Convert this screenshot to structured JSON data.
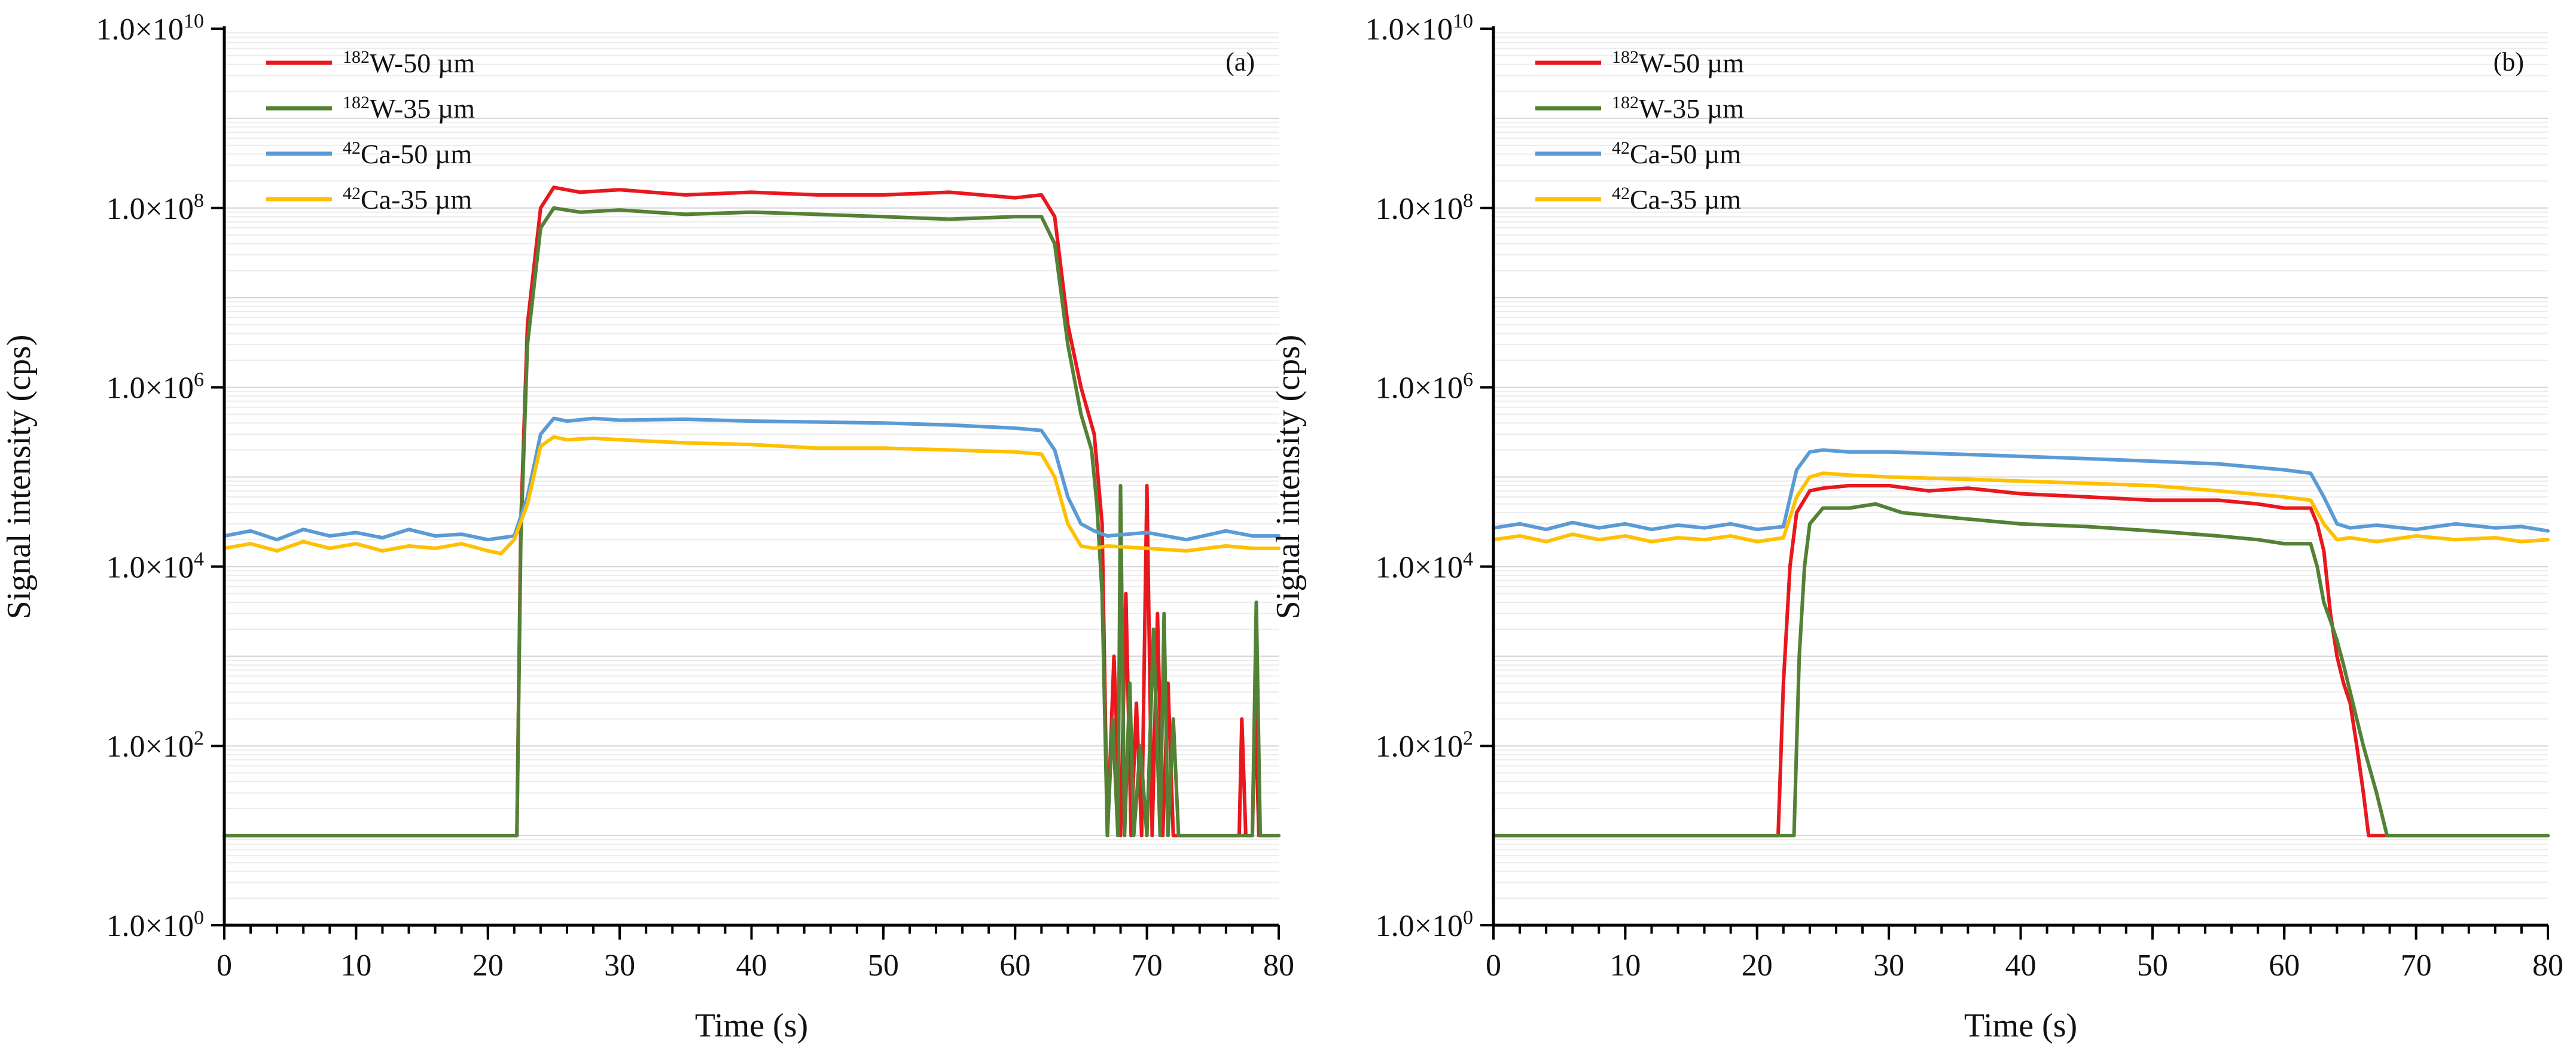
{
  "chart_data": [
    {
      "type": "line",
      "panel_label": "(a)",
      "xlabel": "Time (s)",
      "ylabel": "Signal intensity (cps)",
      "xlim": [
        0,
        80
      ],
      "ylim": [
        1,
        10000000000
      ],
      "yscale": "log",
      "grid": "horizontal minor",
      "legend_position": "top-left",
      "x_ticks": [
        {
          "value": 0,
          "label": "0"
        },
        {
          "value": 10,
          "label": "10"
        },
        {
          "value": 20,
          "label": "20"
        },
        {
          "value": 30,
          "label": "30"
        },
        {
          "value": 40,
          "label": "40"
        },
        {
          "value": 50,
          "label": "50"
        },
        {
          "value": 60,
          "label": "60"
        },
        {
          "value": 70,
          "label": "70"
        },
        {
          "value": 80,
          "label": "80"
        }
      ],
      "y_ticks": [
        {
          "value": 1,
          "base": "1.0×10",
          "exp": "0"
        },
        {
          "value": 100,
          "base": "1.0×10",
          "exp": "2"
        },
        {
          "value": 10000,
          "base": "1.0×10",
          "exp": "4"
        },
        {
          "value": 1000000,
          "base": "1.0×10",
          "exp": "6"
        },
        {
          "value": 100000000,
          "base": "1.0×10",
          "exp": "8"
        },
        {
          "value": 10000000000,
          "base": "1.0×10",
          "exp": "10"
        }
      ],
      "series": [
        {
          "name": "182W-50 µm",
          "isotope_mass": "182",
          "label_rest": "W-50 µm",
          "color": "#e8181e",
          "x": [
            0,
            22.2,
            22.5,
            23.0,
            24.0,
            25.0,
            27.0,
            30.0,
            35.0,
            40.0,
            45.0,
            50.0,
            55.0,
            60.0,
            62.0,
            63.0,
            64.0,
            65.0,
            66.0,
            66.6,
            67.0,
            67.5,
            68.0,
            68.4,
            68.8,
            69.2,
            69.6,
            70.0,
            70.4,
            70.8,
            71.2,
            71.6,
            72.0,
            72.4,
            73.0,
            74.0,
            76.0,
            77.0,
            77.2,
            77.5,
            77.8,
            78.0,
            78.2,
            78.5,
            79.0,
            80.0
          ],
          "values": [
            10,
            10,
            30000,
            5000000,
            100000000,
            170000000,
            150000000,
            160000000,
            140000000,
            150000000,
            140000000,
            140000000,
            150000000,
            130000000,
            140000000,
            80000000,
            5000000,
            1000000,
            300000,
            30000,
            10,
            1000,
            10,
            5000,
            10,
            300,
            10,
            80000,
            10,
            3000,
            10,
            500,
            10,
            10,
            10,
            10,
            10,
            10,
            200,
            10,
            10,
            10,
            300,
            10,
            10,
            10
          ]
        },
        {
          "name": "182W-35 µm",
          "isotope_mass": "182",
          "label_rest": "W-35 µm",
          "color": "#538135",
          "x": [
            0,
            22.2,
            22.5,
            23.0,
            24.0,
            25.0,
            27.0,
            30.0,
            35.0,
            40.0,
            45.0,
            50.0,
            55.0,
            60.0,
            62.0,
            63.0,
            64.0,
            65.0,
            65.8,
            66.2,
            66.6,
            67.0,
            67.4,
            67.8,
            68.0,
            68.3,
            68.7,
            69.0,
            69.5,
            70.0,
            70.5,
            71.0,
            71.3,
            71.6,
            72.0,
            72.4,
            72.8,
            73.0,
            75.0,
            77.0,
            78.0,
            78.3,
            78.6,
            79.0,
            80.0
          ],
          "values": [
            10,
            10,
            20000,
            3000000,
            60000000,
            100000000,
            90000000,
            95000000,
            85000000,
            90000000,
            85000000,
            80000000,
            75000000,
            80000000,
            80000000,
            40000000,
            3000000,
            500000,
            200000,
            50000,
            5000,
            10,
            200,
            10,
            80000,
            10,
            500,
            10,
            100,
            10,
            2000,
            10,
            3000,
            10,
            200,
            10,
            10,
            10,
            10,
            10,
            10,
            4000,
            10,
            10,
            10
          ]
        },
        {
          "name": "42Ca-50 µm",
          "isotope_mass": "42",
          "label_rest": "Ca-50 µm",
          "color": "#5b9bd5",
          "x": [
            0,
            2,
            4,
            6,
            8,
            10,
            12,
            14,
            16,
            18,
            20,
            22.0,
            23.0,
            24.0,
            25.0,
            26.0,
            28.0,
            30.0,
            35.0,
            40.0,
            45.0,
            50.0,
            55.0,
            60.0,
            62.0,
            63.0,
            64.0,
            65.0,
            66.0,
            67.0,
            70.0,
            73.0,
            76.0,
            78.0,
            80.0
          ],
          "values": [
            22000,
            25000,
            20000,
            26000,
            22000,
            24000,
            21000,
            26000,
            22000,
            23000,
            20000,
            22000,
            60000,
            300000,
            450000,
            420000,
            450000,
            430000,
            440000,
            420000,
            410000,
            400000,
            380000,
            350000,
            330000,
            200000,
            60000,
            30000,
            25000,
            22000,
            24000,
            20000,
            25000,
            22000,
            22000
          ]
        },
        {
          "name": "42Ca-35 µm",
          "isotope_mass": "42",
          "label_rest": "Ca-35 µm",
          "color": "#ffc000",
          "x": [
            0,
            2,
            4,
            6,
            8,
            10,
            12,
            14,
            16,
            18,
            20,
            21,
            22.0,
            23.0,
            24.0,
            25.0,
            26.0,
            28.0,
            30.0,
            35.0,
            40.0,
            45.0,
            50.0,
            55.0,
            60.0,
            62.0,
            63.0,
            64.0,
            65.0,
            66.0,
            67.0,
            70.0,
            73.0,
            76.0,
            78.0,
            80.0
          ],
          "values": [
            16000,
            18000,
            15000,
            19000,
            16000,
            18000,
            15000,
            17000,
            16000,
            18000,
            15000,
            14000,
            20000,
            50000,
            220000,
            280000,
            260000,
            270000,
            260000,
            240000,
            230000,
            210000,
            210000,
            200000,
            190000,
            180000,
            100000,
            30000,
            17000,
            16000,
            17000,
            16000,
            15000,
            17000,
            16000,
            16000
          ]
        }
      ]
    },
    {
      "type": "line",
      "panel_label": "(b)",
      "xlabel": "Time (s)",
      "ylabel": "Signal intensity (cps)",
      "xlim": [
        0,
        80
      ],
      "ylim": [
        1,
        10000000000
      ],
      "yscale": "log",
      "grid": "horizontal minor",
      "legend_position": "top-left",
      "x_ticks": [
        {
          "value": 0,
          "label": "0"
        },
        {
          "value": 10,
          "label": "10"
        },
        {
          "value": 20,
          "label": "20"
        },
        {
          "value": 30,
          "label": "30"
        },
        {
          "value": 40,
          "label": "40"
        },
        {
          "value": 50,
          "label": "50"
        },
        {
          "value": 60,
          "label": "60"
        },
        {
          "value": 70,
          "label": "70"
        },
        {
          "value": 80,
          "label": "80"
        }
      ],
      "y_ticks": [
        {
          "value": 1,
          "base": "1.0×10",
          "exp": "0"
        },
        {
          "value": 100,
          "base": "1.0×10",
          "exp": "2"
        },
        {
          "value": 10000,
          "base": "1.0×10",
          "exp": "4"
        },
        {
          "value": 1000000,
          "base": "1.0×10",
          "exp": "6"
        },
        {
          "value": 100000000,
          "base": "1.0×10",
          "exp": "8"
        },
        {
          "value": 10000000000,
          "base": "1.0×10",
          "exp": "10"
        }
      ],
      "series": [
        {
          "name": "182W-50 µm",
          "isotope_mass": "182",
          "label_rest": "W-50 µm",
          "color": "#e8181e",
          "x": [
            0,
            21.6,
            22.0,
            22.5,
            23.0,
            24.0,
            25.0,
            27.0,
            30.0,
            33.0,
            36.0,
            40.0,
            45.0,
            50.0,
            55.0,
            58.0,
            60.0,
            62.0,
            62.5,
            63.0,
            63.5,
            64.0,
            64.5,
            65.0,
            65.5,
            66.0,
            66.4,
            70.0,
            80.0
          ],
          "values": [
            10,
            10,
            500,
            10000,
            40000,
            70000,
            75000,
            80000,
            80000,
            70000,
            75000,
            65000,
            60000,
            55000,
            55000,
            50000,
            45000,
            45000,
            30000,
            15000,
            3000,
            1000,
            500,
            300,
            100,
            30,
            10,
            10,
            10
          ]
        },
        {
          "name": "182W-35 µm",
          "isotope_mass": "182",
          "label_rest": "W-35 µm",
          "color": "#538135",
          "x": [
            0,
            22.8,
            23.2,
            23.6,
            24.0,
            25.0,
            27.0,
            29.0,
            31.0,
            35.0,
            40.0,
            45.0,
            50.0,
            55.0,
            58.0,
            60.0,
            62.0,
            62.5,
            63.0,
            63.5,
            64.0,
            64.5,
            65.0,
            66.0,
            67.0,
            67.8,
            70.0,
            80.0
          ],
          "values": [
            10,
            10,
            1000,
            10000,
            30000,
            45000,
            45000,
            50000,
            40000,
            35000,
            30000,
            28000,
            25000,
            22000,
            20000,
            18000,
            18000,
            10000,
            4000,
            2500,
            1500,
            800,
            400,
            100,
            30,
            10,
            10,
            10
          ]
        },
        {
          "name": "42Ca-50 µm",
          "isotope_mass": "42",
          "label_rest": "Ca-50 µm",
          "color": "#5b9bd5",
          "x": [
            0,
            2,
            4,
            6,
            8,
            10,
            12,
            14,
            16,
            18,
            20,
            22.0,
            23.0,
            24.0,
            25.0,
            27.0,
            30.0,
            35.0,
            40.0,
            45.0,
            50.0,
            55.0,
            60.0,
            62.0,
            63.0,
            64.0,
            65.0,
            67.0,
            70.0,
            73.0,
            76.0,
            78.0,
            80.0
          ],
          "values": [
            27000,
            30000,
            26000,
            31000,
            27000,
            30000,
            26000,
            29000,
            27000,
            30000,
            26000,
            28000,
            120000,
            190000,
            200000,
            190000,
            190000,
            180000,
            170000,
            160000,
            150000,
            140000,
            120000,
            110000,
            60000,
            30000,
            27000,
            29000,
            26000,
            30000,
            27000,
            28000,
            25000
          ]
        },
        {
          "name": "42Ca-35 µm",
          "isotope_mass": "42",
          "label_rest": "Ca-35 µm",
          "color": "#ffc000",
          "x": [
            0,
            2,
            4,
            6,
            8,
            10,
            12,
            14,
            16,
            18,
            20,
            22.0,
            23.0,
            24.0,
            25.0,
            27.0,
            30.0,
            35.0,
            40.0,
            45.0,
            50.0,
            55.0,
            60.0,
            62.0,
            63.0,
            64.0,
            65.0,
            67.0,
            70.0,
            73.0,
            76.0,
            78.0,
            80.0
          ],
          "values": [
            20000,
            22000,
            19000,
            23000,
            20000,
            22000,
            19000,
            21000,
            20000,
            22000,
            19000,
            21000,
            60000,
            100000,
            110000,
            105000,
            100000,
            95000,
            90000,
            85000,
            80000,
            70000,
            60000,
            55000,
            30000,
            20000,
            21000,
            19000,
            22000,
            20000,
            21000,
            19000,
            20000
          ]
        }
      ]
    }
  ]
}
